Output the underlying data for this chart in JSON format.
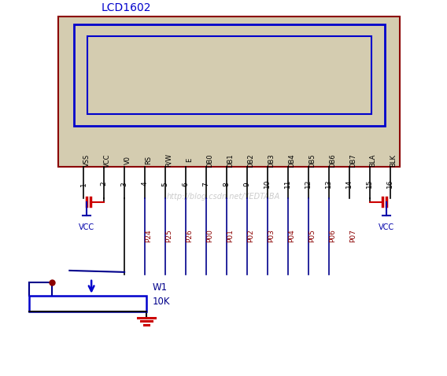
{
  "title": "LCD1602",
  "title_color": "#0000cc",
  "bg_color": "#ffffff",
  "lcd_body_color": "#d4ccb0",
  "lcd_border_color": "#8b0000",
  "lcd_screen_color1": "#0000cc",
  "lcd_screen_color2": "#0000cc",
  "pin_labels_top": [
    "VSS",
    "VCC",
    "V0",
    "RS",
    "R/W",
    "E",
    "DB0",
    "DB1",
    "DB2",
    "DB3",
    "DB4",
    "DB5",
    "DB6",
    "DB7",
    "BLA",
    "BLK"
  ],
  "pin_numbers": [
    "1",
    "2",
    "3",
    "4",
    "5",
    "6",
    "7",
    "8",
    "9",
    "10",
    "11",
    "12",
    "13",
    "14",
    "15",
    "16"
  ],
  "pin_labels_bottom": [
    "",
    "",
    "",
    "P24",
    "P25",
    "P26",
    "P00",
    "P01",
    "P02",
    "P03",
    "P04",
    "P05",
    "P06",
    "P07",
    "",
    ""
  ],
  "pin_color": "#000000",
  "pin_label_color": "#000000",
  "pin_bottom_label_color": "#8b0000",
  "vcc_color": "#0000aa",
  "wire_color": "#00008b",
  "watermark": "http://blog.csdn.net/YEDTABA",
  "watermark_color": "#cccccc",
  "ground_color": "#cc0000",
  "cap_color": "#cc0000",
  "w1_label": "W1",
  "w1_value": "10K",
  "resistor_border": "#0000cc",
  "resistor_fill": "#ffffff",
  "arrow_color": "#0000cc",
  "dot_color": "#8b0000"
}
